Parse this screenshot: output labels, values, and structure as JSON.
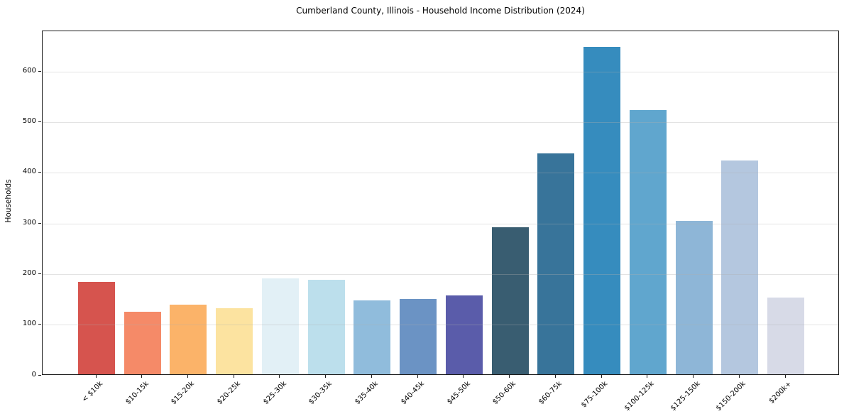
{
  "chart_data": {
    "type": "bar",
    "title": "Cumberland County, Illinois - Household Income Distribution (2024)",
    "xlabel": "",
    "ylabel": "Households",
    "categories": [
      "< $10k",
      "$10-15k",
      "$15-20k",
      "$20-25k",
      "$25-30k",
      "$30-35k",
      "$35-40k",
      "$40-45k",
      "$45-50k",
      "$50-60k",
      "$60-75k",
      "$75-100k",
      "$100-125k",
      "$125-150k",
      "$150-200k",
      "$200k+"
    ],
    "values": [
      182,
      123,
      137,
      130,
      189,
      187,
      146,
      148,
      156,
      290,
      436,
      646,
      521,
      303,
      422,
      151
    ],
    "bar_colors": [
      "#d6544e",
      "#f58a68",
      "#fbb369",
      "#fce3a0",
      "#e2f0f6",
      "#bcdfec",
      "#90bcdc",
      "#6b93c4",
      "#5a5caa",
      "#395d71",
      "#38749a",
      "#368cbe",
      "#60a6ce",
      "#8eb6d7",
      "#b4c7df",
      "#d7dae7"
    ],
    "yticks": [
      0,
      100,
      200,
      300,
      400,
      500,
      600
    ],
    "ylim": [
      0,
      680
    ],
    "grid": "horizontal",
    "legend": "none",
    "colors": {
      "background": "#ffffff",
      "spine": "#1a1a1a",
      "grid": "#b0b0b0",
      "text": "#000000"
    }
  }
}
